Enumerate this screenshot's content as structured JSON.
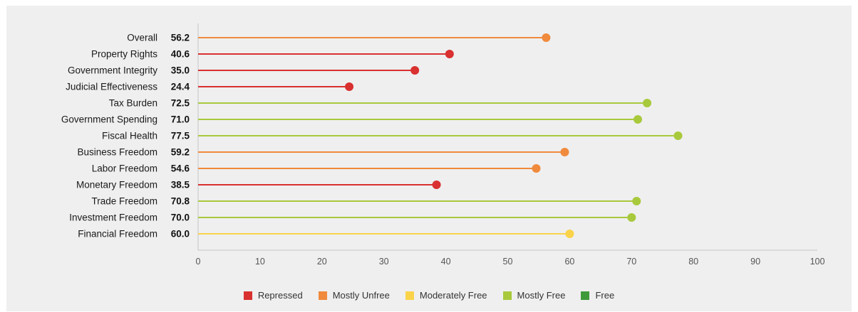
{
  "chart_data": {
    "type": "lollipop",
    "categories": [
      "Overall",
      "Property Rights",
      "Government Integrity",
      "Judicial Effectiveness",
      "Tax Burden",
      "Government Spending",
      "Fiscal Health",
      "Business Freedom",
      "Labor Freedom",
      "Monetary Freedom",
      "Trade Freedom",
      "Investment Freedom",
      "Financial Freedom"
    ],
    "values": [
      56.2,
      40.6,
      35.0,
      24.4,
      72.5,
      71.0,
      77.5,
      59.2,
      54.6,
      38.5,
      70.8,
      70.0,
      60.0
    ],
    "value_labels": [
      "56.2",
      "40.6",
      "35.0",
      "24.4",
      "72.5",
      "71.0",
      "77.5",
      "59.2",
      "54.6",
      "38.5",
      "70.8",
      "70.0",
      "60.0"
    ],
    "point_class": [
      "Mostly Unfree",
      "Repressed",
      "Repressed",
      "Repressed",
      "Mostly Free",
      "Mostly Free",
      "Mostly Free",
      "Mostly Unfree",
      "Mostly Unfree",
      "Repressed",
      "Mostly Free",
      "Mostly Free",
      "Moderately Free"
    ],
    "xlim": [
      0,
      100
    ],
    "x_ticks": [
      0,
      10,
      20,
      30,
      40,
      50,
      60,
      70,
      80,
      90,
      100
    ],
    "grid": false,
    "legend_position": "bottom-center",
    "legend": [
      {
        "label": "Repressed",
        "color": "#d93030"
      },
      {
        "label": "Mostly Unfree",
        "color": "#f08a3c"
      },
      {
        "label": "Moderately Free",
        "color": "#fad34a"
      },
      {
        "label": "Mostly Free",
        "color": "#a8c93c"
      },
      {
        "label": "Free",
        "color": "#3f9a3a"
      }
    ]
  }
}
